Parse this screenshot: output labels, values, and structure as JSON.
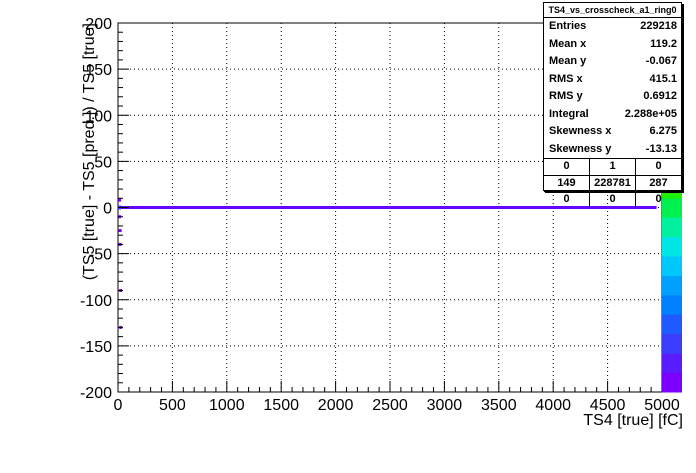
{
  "chart_data": {
    "type": "heatmap",
    "title": "",
    "xlabel": "TS4 [true] [fC]",
    "ylabel": "(TS5 [true] - TS5 [pred.]) / TS5 [true]",
    "xlim": [
      0,
      5000
    ],
    "ylim": [
      -200,
      200
    ],
    "x_ticks": [
      "0",
      "500",
      "1000",
      "1500",
      "2000",
      "2500",
      "3000",
      "3500",
      "4000",
      "4500",
      "5000"
    ],
    "y_ticks": [
      "200",
      "150",
      "100",
      "50",
      "0",
      "-50",
      "-100",
      "-150",
      "-200"
    ],
    "grid": true,
    "colorbar_colors": [
      "#7b00ff",
      "#5a1cff",
      "#3c3cff",
      "#1e5aff",
      "#0080ff",
      "#00a0ff",
      "#00c8ff",
      "#00e6e6",
      "#00f0a0",
      "#00f050",
      "#20f000",
      "#70f000",
      "#b0f000",
      "#e6f000",
      "#ffd200",
      "#ffa000",
      "#ff6400",
      "#ff2800",
      "#ff0000"
    ],
    "points": [
      {
        "x": 10,
        "y": 0,
        "level": 1.0
      },
      {
        "x": 10,
        "y": -10,
        "level": 0.3
      },
      {
        "x": 10,
        "y": 8,
        "level": 0.2
      },
      {
        "x": 15,
        "y": -25,
        "level": 0.15
      },
      {
        "x": 15,
        "y": -40,
        "level": 0.1
      },
      {
        "x": 20,
        "y": -90,
        "level": 0.05
      },
      {
        "x": 20,
        "y": -130,
        "level": 0.05
      }
    ],
    "band": {
      "x_start": 0,
      "x_end": 4950,
      "y": 0,
      "level": 0.05
    },
    "band_color": "#6a00ff"
  },
  "stats": {
    "title": "TS4_vs_crosscheck_a1_ring0",
    "rows": [
      {
        "label": "Entries",
        "value": "229218"
      },
      {
        "label": "Mean x",
        "value": "119.2"
      },
      {
        "label": "Mean y",
        "value": "-0.067"
      },
      {
        "label": "RMS x",
        "value": "415.1"
      },
      {
        "label": "RMS y",
        "value": "0.6912"
      },
      {
        "label": "Integral",
        "value": "2.288e+05"
      },
      {
        "label": "Skewness x",
        "value": "6.275"
      },
      {
        "label": "Skewness y",
        "value": "-13.13"
      }
    ],
    "grid": [
      [
        "0",
        "1",
        "0"
      ],
      [
        "149",
        "228781",
        "287"
      ],
      [
        "0",
        "0",
        "0"
      ]
    ]
  }
}
